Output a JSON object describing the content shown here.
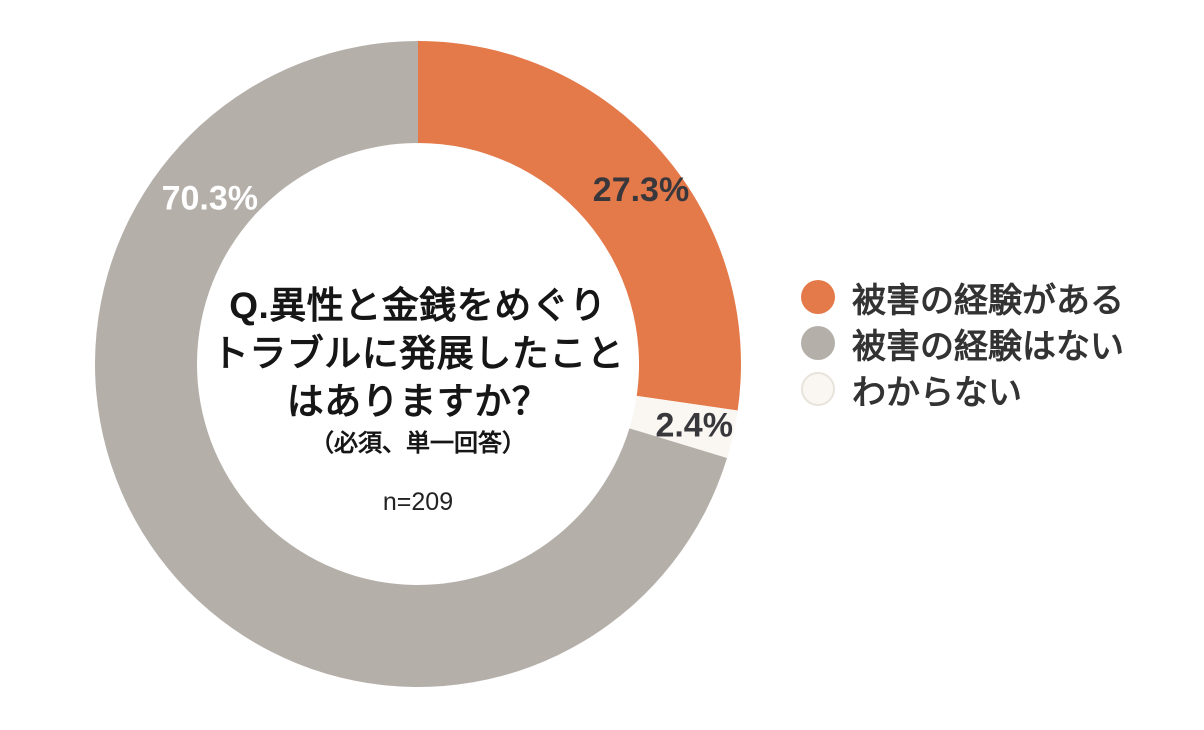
{
  "chart_data": {
    "type": "pie",
    "variant": "donut",
    "title": "Q.異性と金銭をめぐりトラブルに発展したことはありますか？",
    "title_lines": [
      "Q.異性と金銭をめぐり",
      "トラブルに発展したこと",
      "はありますか？"
    ],
    "subtitle": "（必須、単一回答）",
    "sample_size": "n=209",
    "start_angle_deg": 0,
    "direction": "clockwise",
    "legend_position": "right",
    "background_color": "#FFFFFF",
    "slices": [
      {
        "label": "被害の経験がある",
        "value": 27.3,
        "display": "27.3%",
        "color": "#E4794A",
        "label_color": "#38383C",
        "label_angle_deg": 52.0,
        "label_radius": 283
      },
      {
        "label": "わからない",
        "value": 2.4,
        "display": "2.4%",
        "color": "#FAF7F2",
        "label_color": "#38383C",
        "label_angle_deg": 102.6,
        "label_radius": 283
      },
      {
        "label": "被害の経験はない",
        "value": 70.3,
        "display": "70.3%",
        "color": "#B5AFAA",
        "label_color": "#FFFFFF",
        "label_angle_deg": 308.5,
        "label_radius": 266
      }
    ],
    "legend": [
      {
        "label": "被害の経験がある",
        "color": "#E4794A",
        "border": ""
      },
      {
        "label": "被害の経験はない",
        "color": "#B5AFAA",
        "border": ""
      },
      {
        "label": "わからない",
        "color": "#FAF7F2",
        "border": "#E8E3DB"
      }
    ]
  }
}
